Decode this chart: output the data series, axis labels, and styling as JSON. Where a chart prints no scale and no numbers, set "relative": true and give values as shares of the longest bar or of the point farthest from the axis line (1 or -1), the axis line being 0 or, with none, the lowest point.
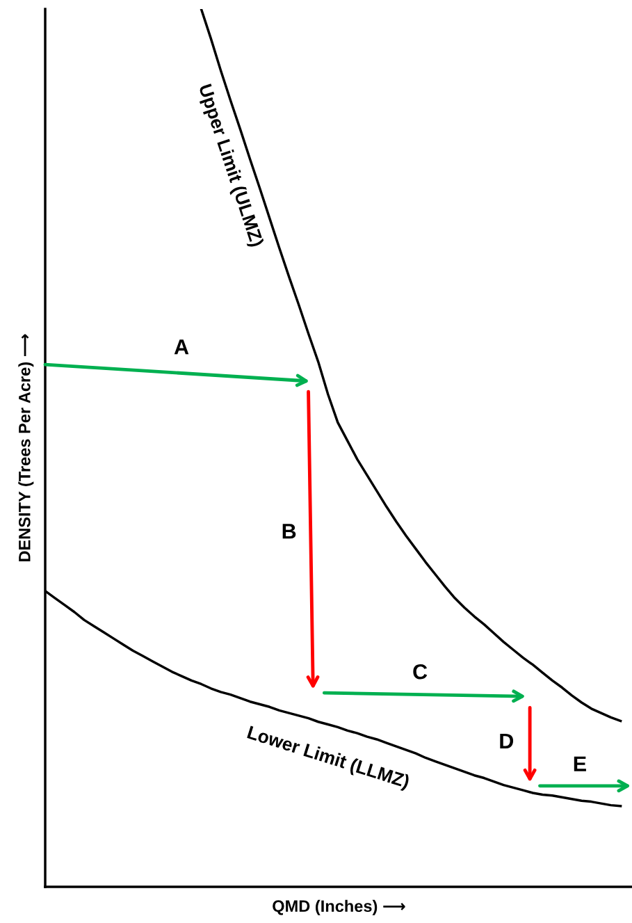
{
  "chart_data": {
    "type": "line",
    "relative": true,
    "xlabel": "QMD (Inches) ⟶",
    "ylabel": "DENSITY (Trees Per Acre) ⟶",
    "categories": [
      null,
      null,
      null,
      null,
      null,
      null,
      null,
      null,
      null,
      null,
      null,
      null,
      null,
      null,
      null,
      null,
      null,
      null,
      null,
      null,
      null,
      null,
      null,
      null,
      null,
      null,
      null,
      null,
      null,
      null,
      null,
      null,
      null,
      null,
      null,
      null,
      null,
      null,
      null,
      null,
      null,
      null,
      null,
      null,
      null,
      null,
      null,
      null,
      null,
      null,
      null,
      null,
      null,
      null,
      null,
      null,
      null,
      null,
      null,
      null,
      null
    ],
    "series": [
      {
        "name": "Upper Limit (ULMZ)",
        "color": "#000000",
        "values": [
          null,
          null,
          null,
          null,
          null,
          null,
          null,
          null,
          null,
          null,
          null,
          null,
          null,
          null,
          null,
          null,
          1.0,
          0.966,
          0.93,
          0.896,
          0.863,
          0.829,
          0.796,
          0.762,
          0.728,
          0.695,
          0.663,
          0.63,
          0.598,
          0.561,
          0.529,
          0.508,
          0.487,
          0.469,
          0.451,
          0.433,
          0.416,
          0.4,
          0.385,
          0.37,
          0.356,
          0.342,
          0.329,
          0.318,
          0.308,
          0.299,
          0.289,
          0.279,
          0.27,
          0.261,
          0.253,
          0.244,
          0.235,
          0.227,
          0.218,
          0.21,
          0.203,
          0.198,
          0.193,
          0.189,
          null
        ]
      },
      {
        "name": "Lower Limit (LLMZ)",
        "color": "#000000",
        "values": [
          0.337,
          0.329,
          0.321,
          0.313,
          0.304,
          0.297,
          0.29,
          0.283,
          0.276,
          0.269,
          0.263,
          0.257,
          0.251,
          0.245,
          0.24,
          0.235,
          0.231,
          0.226,
          0.222,
          0.219,
          0.215,
          0.211,
          0.208,
          0.205,
          0.201,
          0.198,
          0.195,
          0.192,
          0.188,
          0.185,
          0.182,
          0.178,
          0.175,
          0.171,
          0.168,
          0.164,
          0.16,
          0.156,
          0.152,
          0.147,
          0.143,
          0.139,
          0.135,
          0.131,
          0.127,
          0.124,
          0.12,
          0.116,
          0.113,
          0.11,
          0.107,
          0.105,
          0.104,
          0.102,
          0.1,
          0.098,
          0.097,
          0.095,
          0.093,
          0.092,
          null
        ]
      }
    ],
    "annotations": [
      "A",
      "B",
      "C",
      "D",
      "E"
    ]
  }
}
